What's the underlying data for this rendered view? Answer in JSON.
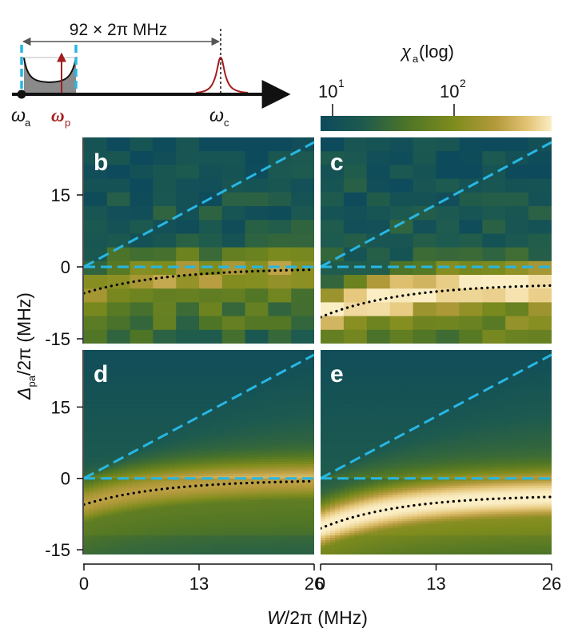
{
  "colors": {
    "colormap": [
      "#0d4a5c",
      "#1d5a4f",
      "#4f7526",
      "#7f8c1d",
      "#b49a3c",
      "#e4c577",
      "#fbeec5"
    ],
    "cyan": "#27b7e4",
    "black": "#000000",
    "probe": "#a31d1d",
    "cavity": "#a31d1d",
    "band_fill": "#8a8a8a"
  },
  "schematic": {
    "width_label": "92 × 2π MHz",
    "omega_a": "ω",
    "omega_a_sub": "a",
    "omega_p": "ω",
    "omega_p_sub": "p",
    "omega_c": "ω",
    "omega_c_sub": "c"
  },
  "colorbar": {
    "label_chi": "χ",
    "label_sub": "a",
    "label_rest": " (log)",
    "tick_1_base": "10",
    "tick_1_exp": "1",
    "tick_2_base": "10",
    "tick_2_exp": "2",
    "log_min": 0.9,
    "log_max": 2.8
  },
  "chart_data": {
    "type": "heatmap",
    "xlabel_main": "W",
    "xlabel_rest": "/2π (MHz)",
    "ylabel_main": "Δ",
    "ylabel_sub": "pa",
    "ylabel_rest": "/2π (MHz)",
    "x_range": [
      0,
      26
    ],
    "y_range": [
      -16,
      27
    ],
    "x_ticks": [
      "0",
      "13",
      "26"
    ],
    "x_tick_values": [
      0,
      13,
      26
    ],
    "y_ticks": [
      "15",
      "0",
      "-15"
    ],
    "y_tick_values": [
      15,
      0,
      -15
    ],
    "panels": [
      {
        "id": "b",
        "letter": "b",
        "kind": "experiment",
        "dotted_y0": -5.5,
        "dotted_yinf": -0.3,
        "strength": 0.55
      },
      {
        "id": "c",
        "letter": "c",
        "kind": "experiment",
        "dotted_y0": -10.5,
        "dotted_yinf": -3.5,
        "strength": 1.0
      },
      {
        "id": "d",
        "letter": "d",
        "kind": "theory",
        "dotted_y0": -5.5,
        "dotted_yinf": -0.3,
        "strength": 0.6
      },
      {
        "id": "e",
        "letter": "e",
        "kind": "theory",
        "dotted_y0": -10.5,
        "dotted_yinf": -3.5,
        "strength": 1.0
      }
    ],
    "cyan_lines": [
      {
        "name": "horizontal",
        "slope": 0,
        "intercept": 0
      },
      {
        "name": "diagonal",
        "slope": 1.0,
        "intercept": 0
      }
    ]
  }
}
